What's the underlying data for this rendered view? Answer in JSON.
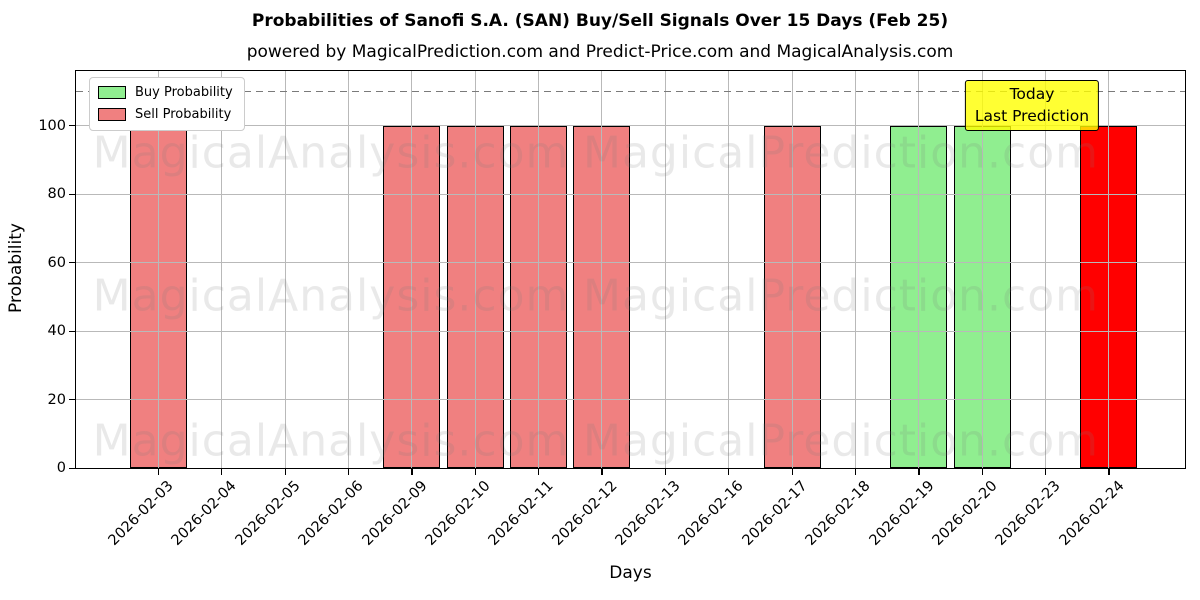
{
  "title": "Probabilities of Sanofi S.A. (SAN) Buy/Sell Signals Over 15 Days (Feb 25)",
  "subtitle": "powered by MagicalPrediction.com and Predict-Price.com and MagicalAnalysis.com",
  "legend": {
    "items": [
      {
        "label": "Buy Probability",
        "color": "#90ee90"
      },
      {
        "label": "Sell Probability",
        "color": "#f08080"
      }
    ]
  },
  "annotation": {
    "line1": "Today",
    "line2": "Last Prediction",
    "bg_color": "#ffff00"
  },
  "axes": {
    "xlabel": "Days",
    "ylabel": "Probability",
    "yticks": [
      0,
      20,
      40,
      60,
      80,
      100
    ],
    "threshold": 110
  },
  "watermarks": [
    "MagicalAnalysis.com",
    "MagicalPrediction.com"
  ],
  "colors": {
    "buy": "#90ee90",
    "sell": "#f08080",
    "today": "#ff0000",
    "bar_edge": "#000000",
    "grid": "#b9b9b9",
    "threshold_line": "#7a7a7a",
    "annotation_bg": "#ffff00"
  },
  "chart_data": {
    "type": "bar",
    "title": "Probabilities of Sanofi S.A. (SAN) Buy/Sell Signals Over 15 Days (Feb 25)",
    "xlabel": "Days",
    "ylabel": "Probability",
    "ylim": [
      0,
      116
    ],
    "threshold_y": 110,
    "grid": true,
    "legend_position": "upper left",
    "categories": [
      "2026-02-03",
      "2026-02-04",
      "2026-02-05",
      "2026-02-06",
      "2026-02-09",
      "2026-02-10",
      "2026-02-11",
      "2026-02-12",
      "2026-02-13",
      "2026-02-16",
      "2026-02-17",
      "2026-02-18",
      "2026-02-19",
      "2026-02-20",
      "2026-02-23",
      "2026-02-24"
    ],
    "series": [
      {
        "name": "Buy Probability",
        "color": "#90ee90",
        "values": [
          0,
          0,
          0,
          0,
          0,
          0,
          0,
          0,
          0,
          0,
          0,
          0,
          100,
          100,
          0,
          0
        ]
      },
      {
        "name": "Sell Probability",
        "color": "#f08080",
        "values": [
          100,
          0,
          0,
          0,
          100,
          100,
          100,
          100,
          0,
          0,
          100,
          0,
          0,
          0,
          0,
          0
        ]
      },
      {
        "name": "Today Last Prediction",
        "color": "#ff0000",
        "values": [
          0,
          0,
          0,
          0,
          0,
          0,
          0,
          0,
          0,
          0,
          0,
          0,
          0,
          0,
          0,
          100
        ]
      }
    ]
  }
}
